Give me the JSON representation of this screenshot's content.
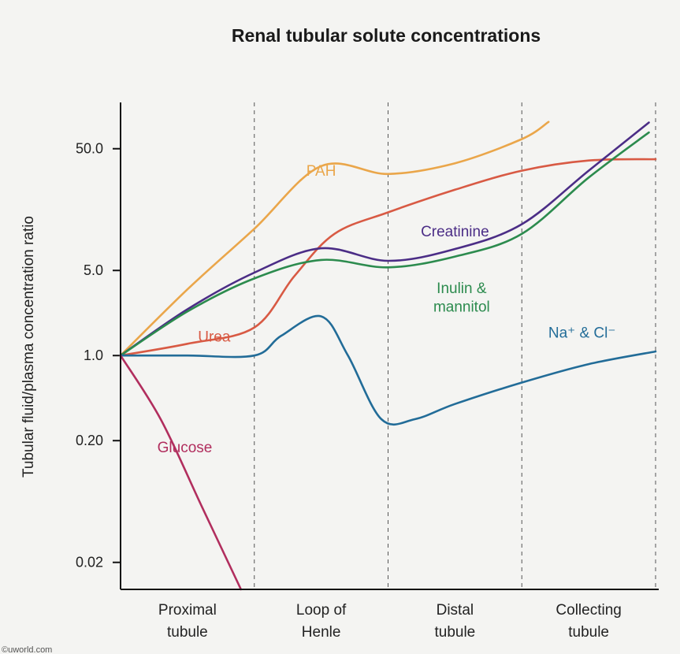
{
  "chart_data": {
    "type": "line",
    "title": "Renal tubular solute concentrations",
    "xlabel": "",
    "ylabel": "Tubular fluid/plasma concentration ratio",
    "yscale": "log",
    "ylim": [
      0.012,
      120
    ],
    "xlim": [
      0,
      4
    ],
    "yticks": [
      {
        "value": 50.0,
        "label": "50.0"
      },
      {
        "value": 5.0,
        "label": "5.0"
      },
      {
        "value": 1.0,
        "label": "1.0"
      },
      {
        "value": 0.2,
        "label": "0.20"
      },
      {
        "value": 0.02,
        "label": "0.02"
      }
    ],
    "segments": [
      {
        "label_line1": "Proximal",
        "label_line2": "tubule"
      },
      {
        "label_line1": "Loop of",
        "label_line2": "Henle"
      },
      {
        "label_line1": "Distal",
        "label_line2": "tubule"
      },
      {
        "label_line1": "Collecting",
        "label_line2": "tubule"
      }
    ],
    "grid": "dashed vertical segment dividers",
    "series": [
      {
        "name": "PAH",
        "color": "#eaa64a",
        "x": [
          0,
          0.5,
          1,
          1.5,
          2,
          2.5,
          3,
          3.2
        ],
        "y": [
          1.0,
          3.5,
          11,
          36,
          31,
          38,
          60,
          83
        ]
      },
      {
        "name": "Urea",
        "color": "#d85a44",
        "x": [
          0,
          0.5,
          1,
          1.3,
          1.6,
          2,
          2.5,
          3,
          3.5,
          4
        ],
        "y": [
          1.0,
          1.25,
          1.7,
          4.5,
          10,
          15,
          23,
          33,
          40,
          41
        ]
      },
      {
        "name": "Creatinine",
        "color": "#4b2d86",
        "x": [
          0,
          0.5,
          1,
          1.5,
          2,
          2.5,
          3,
          3.5,
          3.95
        ],
        "y": [
          1.0,
          2.4,
          4.8,
          7.6,
          6.0,
          7.5,
          12,
          33,
          82
        ]
      },
      {
        "name": "Inulin & mannitol",
        "color": "#2c8b4e",
        "x": [
          0,
          0.5,
          1,
          1.5,
          2,
          2.5,
          3,
          3.5,
          3.95
        ],
        "y": [
          1.0,
          2.3,
          4.3,
          6.1,
          5.3,
          6.5,
          10,
          29,
          68
        ]
      },
      {
        "name": "Na+ & Cl-",
        "color": "#226c98",
        "x": [
          0,
          0.5,
          1,
          1.2,
          1.5,
          1.7,
          1.95,
          2.2,
          2.5,
          3,
          3.5,
          4
        ],
        "y": [
          1.0,
          1.0,
          1.0,
          1.45,
          2.1,
          1.0,
          0.3,
          0.3,
          0.4,
          0.6,
          0.85,
          1.08
        ]
      },
      {
        "name": "Glucose",
        "color": "#b12e5e",
        "x": [
          0,
          0.3,
          0.6,
          0.9
        ],
        "y": [
          1.0,
          0.3,
          0.06,
          0.012
        ]
      }
    ],
    "annotations": [
      {
        "text": "PAH",
        "color": "#eaa64a"
      },
      {
        "text": "Urea",
        "color": "#d85a44"
      },
      {
        "text": "Creatinine",
        "color": "#4b2d86"
      },
      {
        "text": "Inulin &",
        "color": "#2c8b4e"
      },
      {
        "text": "mannitol",
        "color": "#2c8b4e"
      },
      {
        "text": "Na⁺ & Cl⁻",
        "color": "#226c98"
      },
      {
        "text": "Glucose",
        "color": "#b12e5e"
      }
    ]
  },
  "credit": "©uworld.com"
}
